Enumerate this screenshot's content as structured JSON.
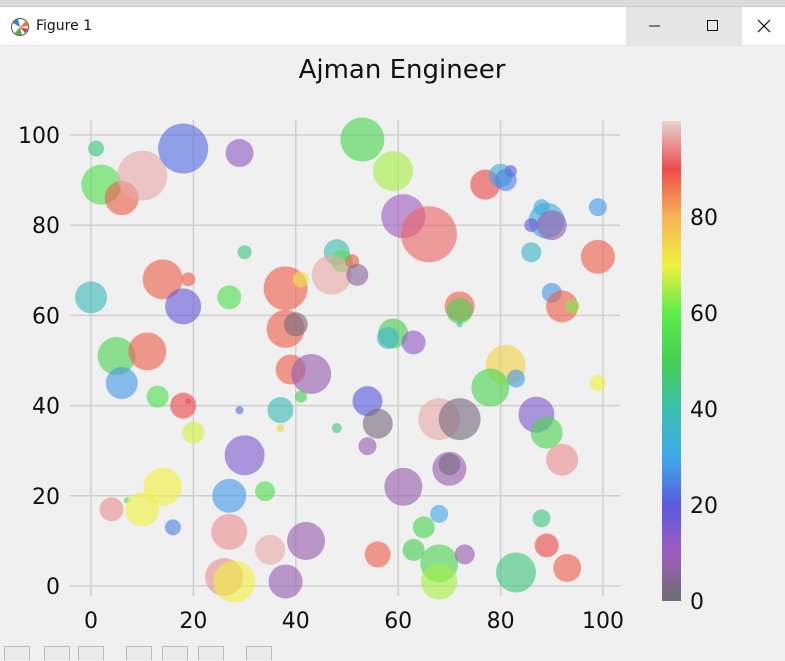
{
  "window": {
    "title": "Figure 1"
  },
  "chart_data": {
    "type": "scatter",
    "title": "Ajman Engineer",
    "xlabel": "",
    "ylabel": "",
    "xlim": [
      -4,
      104
    ],
    "ylim": [
      -3,
      104
    ],
    "xticks": [
      "0",
      "20",
      "40",
      "60",
      "80",
      "100"
    ],
    "yticks": [
      "0",
      "20",
      "40",
      "60",
      "80",
      "100"
    ],
    "grid": true,
    "colormap": "custom: gray-purple-blue-cyan-green-yellow-orange-red-pink",
    "colorbar": {
      "ticks": [
        "0",
        "20",
        "40",
        "60",
        "80"
      ],
      "range": [
        0,
        100
      ]
    },
    "series": [
      {
        "points": [
          [
            1,
            97,
            8,
            45
          ],
          [
            2,
            89,
            20,
            55
          ],
          [
            6,
            86,
            17,
            88
          ],
          [
            10,
            91,
            25,
            97
          ],
          [
            18,
            97,
            25,
            22
          ],
          [
            29,
            96,
            14,
            12
          ],
          [
            53,
            99,
            22,
            52
          ],
          [
            59,
            92,
            20,
            65
          ],
          [
            61,
            82,
            22,
            10
          ],
          [
            66,
            78,
            28,
            92
          ],
          [
            77,
            89,
            15,
            90
          ],
          [
            80,
            91,
            12,
            32
          ],
          [
            82,
            92,
            6,
            18
          ],
          [
            81,
            90,
            11,
            25
          ],
          [
            88,
            84,
            8,
            30
          ],
          [
            89,
            81,
            18,
            32
          ],
          [
            90,
            80,
            15,
            8
          ],
          [
            86,
            80,
            7,
            18
          ],
          [
            99,
            84,
            9,
            28
          ],
          [
            99,
            73,
            17,
            88
          ],
          [
            86,
            74,
            10,
            35
          ],
          [
            90,
            65,
            10,
            28
          ],
          [
            92,
            62,
            16,
            88
          ],
          [
            94,
            62,
            7,
            62
          ],
          [
            0,
            64,
            16,
            38
          ],
          [
            14,
            68,
            20,
            88
          ],
          [
            19,
            68,
            7,
            88
          ],
          [
            18,
            62,
            18,
            18
          ],
          [
            27,
            64,
            12,
            55
          ],
          [
            30,
            74,
            7,
            45
          ],
          [
            38,
            66,
            22,
            88
          ],
          [
            41,
            68,
            8,
            72
          ],
          [
            48,
            74,
            13,
            40
          ],
          [
            49,
            72,
            11,
            55
          ],
          [
            47,
            69,
            20,
            97
          ],
          [
            51,
            72,
            7,
            88
          ],
          [
            52,
            69,
            11,
            5
          ],
          [
            38,
            57,
            19,
            88
          ],
          [
            40,
            58,
            12,
            2
          ],
          [
            39,
            48,
            15,
            88
          ],
          [
            43,
            47,
            20,
            8
          ],
          [
            41,
            42,
            6,
            50
          ],
          [
            37,
            39,
            13,
            38
          ],
          [
            29,
            39,
            4,
            22
          ],
          [
            37,
            35,
            4,
            75
          ],
          [
            48,
            35,
            5,
            45
          ],
          [
            54,
            31,
            9,
            8
          ],
          [
            5,
            51,
            19,
            52
          ],
          [
            11,
            52,
            19,
            88
          ],
          [
            6,
            45,
            16,
            28
          ],
          [
            13,
            42,
            11,
            55
          ],
          [
            18,
            40,
            13,
            90
          ],
          [
            19,
            41,
            3,
            90
          ],
          [
            20,
            34,
            11,
            68
          ],
          [
            54,
            41,
            15,
            20
          ],
          [
            59,
            56,
            15,
            50
          ],
          [
            58,
            55,
            11,
            35
          ],
          [
            63,
            54,
            12,
            12
          ],
          [
            72,
            62,
            15,
            88
          ],
          [
            72,
            61,
            13,
            52
          ],
          [
            72,
            58,
            3,
            40
          ],
          [
            81,
            49,
            20,
            75
          ],
          [
            83,
            46,
            9,
            28
          ],
          [
            78,
            44,
            19,
            52
          ],
          [
            87,
            38,
            18,
            15
          ],
          [
            89,
            34,
            16,
            52
          ],
          [
            92,
            28,
            16,
            95
          ],
          [
            99,
            45,
            8,
            70
          ],
          [
            56,
            36,
            15,
            2
          ],
          [
            68,
            37,
            21,
            97
          ],
          [
            72,
            37,
            21,
            2
          ],
          [
            70,
            26,
            17,
            8
          ],
          [
            70,
            27,
            11,
            2
          ],
          [
            61,
            22,
            19,
            8
          ],
          [
            68,
            16,
            9,
            30
          ],
          [
            65,
            13,
            11,
            52
          ],
          [
            63,
            8,
            11,
            50
          ],
          [
            68,
            5,
            19,
            52
          ],
          [
            68,
            1,
            18,
            65
          ],
          [
            56,
            7,
            13,
            88
          ],
          [
            73,
            7,
            10,
            8
          ],
          [
            83,
            3,
            20,
            45
          ],
          [
            88,
            15,
            9,
            45
          ],
          [
            89,
            9,
            12,
            90
          ],
          [
            93,
            4,
            14,
            88
          ],
          [
            4,
            17,
            12,
            95
          ],
          [
            7,
            19,
            3,
            55
          ],
          [
            10,
            17,
            17,
            70
          ],
          [
            14,
            22,
            19,
            70
          ],
          [
            16,
            13,
            8,
            25
          ],
          [
            27,
            20,
            17,
            28
          ],
          [
            30,
            29,
            20,
            15
          ],
          [
            34,
            21,
            10,
            55
          ],
          [
            27,
            12,
            18,
            95
          ],
          [
            35,
            8,
            15,
            97
          ],
          [
            26,
            2,
            19,
            95
          ],
          [
            28,
            1,
            21,
            70
          ],
          [
            38,
            1,
            17,
            8
          ],
          [
            42,
            10,
            19,
            8
          ]
        ]
      }
    ]
  }
}
